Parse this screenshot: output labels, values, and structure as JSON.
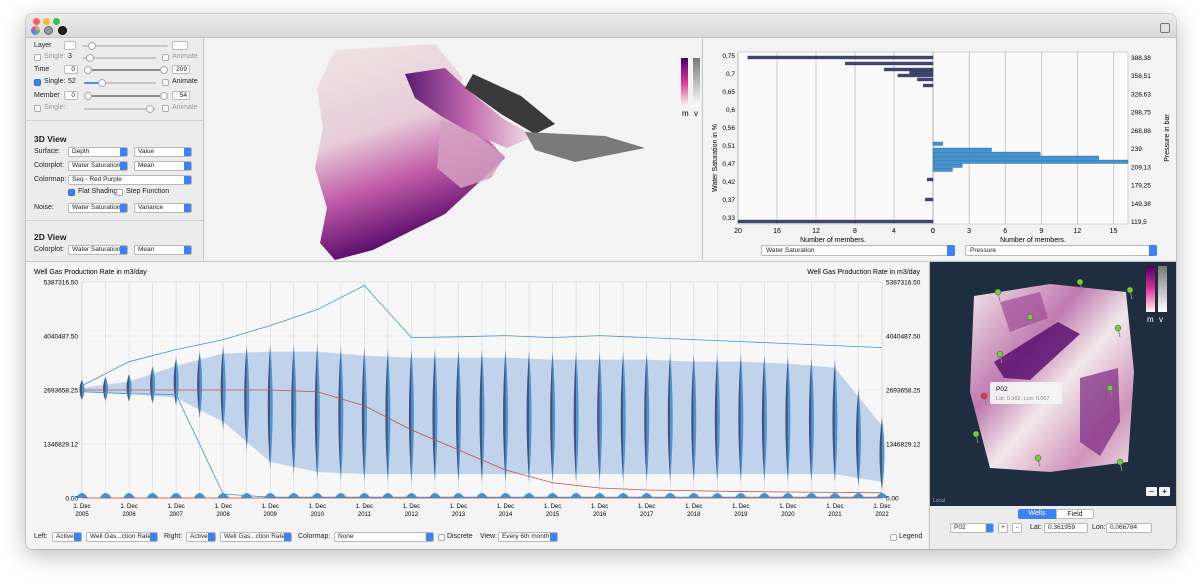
{
  "sidebar": {
    "layer_label": "Layer",
    "single_label": "Single:",
    "single1_value": "3",
    "animate_label": "Animate",
    "time_label": "Time",
    "time_min": "0",
    "time_max": "209",
    "single2_value": "52",
    "member_label": "Member",
    "member_min": "0",
    "member_max": "54",
    "view3d_title": "3D View",
    "surface_label": "Surface:",
    "surface_value": "Depth",
    "surface_mode": "Value",
    "colorplot_label": "Colorplot:",
    "colorplot_value": "Water Saturation",
    "colorplot_mode": "Mean",
    "colormap_label": "Colormap:",
    "colormap_value": "Seq - Red Purple",
    "flat_shading_label": "Flat Shading",
    "step_function_label": "Step Function",
    "noise_label": "Noise:",
    "noise_value": "Water Saturation",
    "noise_mode": "Variance",
    "view2d_title": "2D View",
    "colorplot2d_value": "Water Saturation",
    "colorplot2d_mode": "Mean"
  },
  "legend_3d": {
    "m": "m",
    "v": "v"
  },
  "histogram": {
    "left_axis_title": "Water Saturation in %",
    "right_axis_title": "Pressure in bar",
    "left_ticks": [
      "0,75",
      "0,7",
      "0,65",
      "0,6",
      "0,56",
      "0,51",
      "0,47",
      "0,42",
      "0,37",
      "0,33"
    ],
    "right_ticks": [
      "388,38",
      "358,51",
      "328,63",
      "298,75",
      "268,88",
      "239",
      "209,13",
      "179,25",
      "149,38",
      "119,5"
    ],
    "left_x_ticks": [
      "20",
      "16",
      "12",
      "8",
      "4",
      "0"
    ],
    "right_x_ticks": [
      "0",
      "3",
      "6",
      "9",
      "12",
      "15"
    ],
    "x_title": "Number of members.",
    "left_select": "Water Saturation",
    "right_select": "Pressure"
  },
  "chart_data": {
    "type": "line",
    "title_left": "Well Gas Production Rate in m3/day",
    "title_right": "Well Gas Production Rate in m3/day",
    "y_ticks": [
      "5387316.50",
      "4040487.50",
      "2693658.25",
      "1346829.12",
      "0.00"
    ],
    "ylim": [
      0,
      5387316.5
    ],
    "x_labels": [
      [
        "1. Dec",
        "2005"
      ],
      [
        "1. Dec",
        "2006"
      ],
      [
        "1. Dec",
        "2007"
      ],
      [
        "1. Dec",
        "2008"
      ],
      [
        "1. Dec",
        "2009"
      ],
      [
        "1. Dec",
        "2010"
      ],
      [
        "1. Dec",
        "2011"
      ],
      [
        "1. Dec",
        "2012"
      ],
      [
        "1. Dec",
        "2013"
      ],
      [
        "1. Dec",
        "2014"
      ],
      [
        "1. Dec",
        "2015"
      ],
      [
        "1. Dec",
        "2016"
      ],
      [
        "1. Dec",
        "2017"
      ],
      [
        "1. Dec",
        "2018"
      ],
      [
        "1. Dec",
        "2019"
      ],
      [
        "1. Dec",
        "2020"
      ],
      [
        "1. Dec",
        "2021"
      ],
      [
        "1. Dec",
        "2022"
      ]
    ],
    "max_line": [
      2800000,
      3400000,
      3700000,
      3950000,
      4300000,
      4700000,
      5300000,
      4000000,
      4020000,
      4050000,
      4000000,
      4050000,
      4000000,
      3950000,
      3900000,
      3850000,
      3800000,
      3750000
    ],
    "min_line": [
      2650000,
      2600000,
      2580000,
      100000,
      20000,
      20000,
      20000,
      20000,
      20000,
      20000,
      20000,
      20000,
      20000,
      20000,
      20000,
      20000,
      20000,
      20000
    ],
    "mean_line": [
      2693658,
      2693658,
      2693658,
      2693658,
      2693658,
      2650000,
      2300000,
      1700000,
      1200000,
      700000,
      380000,
      250000,
      200000,
      180000,
      160000,
      150000,
      140000,
      130000
    ],
    "band_upper": [
      2750000,
      2900000,
      3300000,
      3600000,
      3650000,
      3650000,
      3550000,
      3500000,
      3500000,
      3500000,
      3450000,
      3450000,
      3450000,
      3400000,
      3400000,
      3350000,
      3250000,
      1800000
    ],
    "band_lower": [
      2650000,
      2600000,
      2500000,
      1900000,
      900000,
      650000,
      600000,
      600000,
      600000,
      600000,
      600000,
      600000,
      600000,
      600000,
      600000,
      600000,
      600000,
      400000
    ]
  },
  "controls": {
    "left_label": "Left:",
    "left_mode": "Active",
    "left_var": "Well Gas...ction Rate",
    "right_label": "Right:",
    "right_mode": "Active",
    "right_var": "Well Gas...ction Rate",
    "colormap_label": "Colormap:",
    "colormap_value": "None",
    "discrete_label": "Discrete",
    "view_label": "View:",
    "view_value": "Every 6th month",
    "legend_label": "Legend"
  },
  "map": {
    "legend_m": "m",
    "legend_v": "v",
    "tooltip_title": "P02",
    "tooltip_coords": "Lat: 0.362, Lon: 0.067",
    "credit": "Local",
    "tabs": [
      "Wells",
      "Field"
    ],
    "well_value": "P02",
    "lat_label": "Lat:",
    "lat_value": "0.361959",
    "lon_label": "Lon:",
    "lon_value": "0.066784"
  },
  "colors": {
    "accent": "#3b82f6",
    "band": "#b7cce9",
    "violin_dark": "#3f4a78",
    "violin_light": "#3f93d3",
    "mean_line": "#c0504d",
    "map_bg": "#1e2d3f"
  }
}
